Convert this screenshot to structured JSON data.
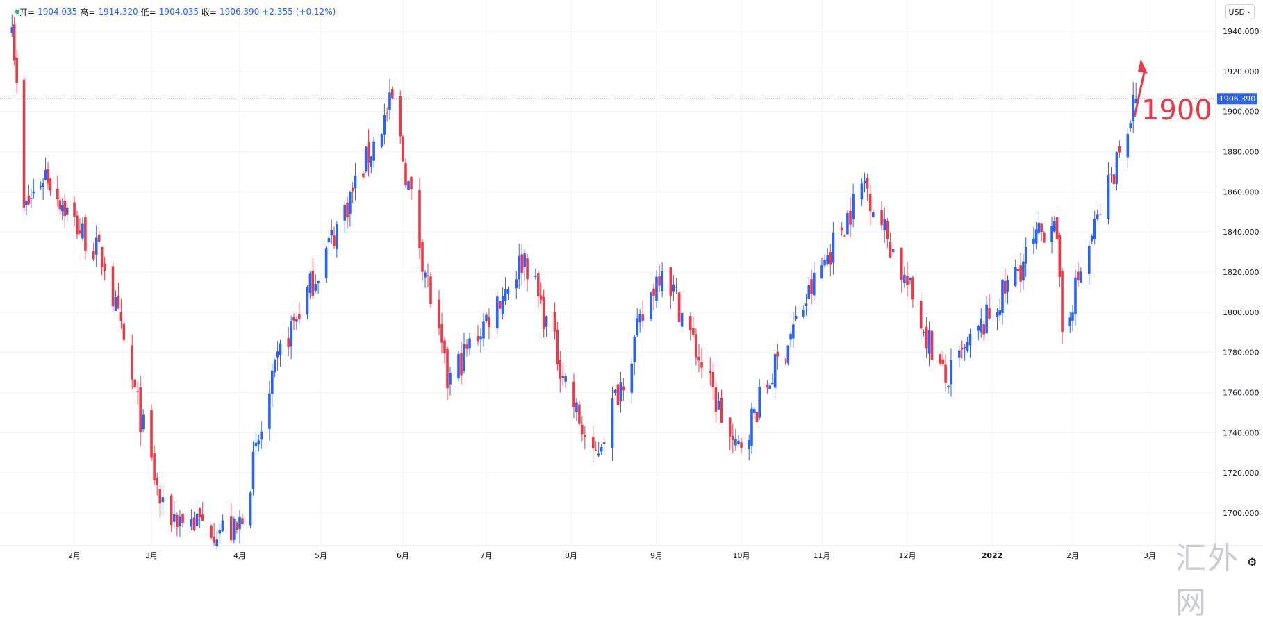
{
  "legend": {
    "open_label": "开=",
    "open": "1904.035",
    "high_label": "高=",
    "high": "1914.320",
    "low_label": "低=",
    "low": "1904.035",
    "close_label": "收=",
    "close": "1906.390",
    "change": "+2.355",
    "change_pct": "(+0.12%)"
  },
  "currency_button": "USD",
  "last_price_label": "1906.390",
  "annotation": {
    "text": "1900",
    "color": "#f23645"
  },
  "watermark": "汇外网",
  "colors": {
    "up": "#2962ff",
    "down": "#f23645",
    "grid": "#f0f3fa",
    "axis_text": "#131722",
    "price_line": "#7a7f8c"
  },
  "chart_data": {
    "type": "candlestick",
    "title": "",
    "x_tick_labels": [
      "2月",
      "3月",
      "4月",
      "5月",
      "6月",
      "7月",
      "8月",
      "9月",
      "10月",
      "11月",
      "12月",
      "2022",
      "2月",
      "3月"
    ],
    "y_tick_labels": [
      "1700.000",
      "1720.000",
      "1740.000",
      "1760.000",
      "1780.000",
      "1800.000",
      "1820.000",
      "1840.000",
      "1860.000",
      "1880.000",
      "1900.000",
      "1920.000",
      "1940.000"
    ],
    "ylim": [
      1678,
      1950
    ],
    "grid": true,
    "last_price": 1906.39,
    "key_points": [
      {
        "date": "2021-01-06",
        "close": 1950
      },
      {
        "date": "2021-01-11",
        "close": 1850
      },
      {
        "date": "2021-01-20",
        "close": 1870
      },
      {
        "date": "2021-01-29",
        "close": 1850
      },
      {
        "date": "2021-02-12",
        "close": 1825
      },
      {
        "date": "2021-03-05",
        "close": 1700
      },
      {
        "date": "2021-03-31",
        "close": 1690
      },
      {
        "date": "2021-04-16",
        "close": 1780
      },
      {
        "date": "2021-05-28",
        "close": 1905
      },
      {
        "date": "2021-06-17",
        "close": 1765
      },
      {
        "date": "2021-07-15",
        "close": 1828
      },
      {
        "date": "2021-08-09",
        "close": 1725
      },
      {
        "date": "2021-09-03",
        "close": 1825
      },
      {
        "date": "2021-09-29",
        "close": 1730
      },
      {
        "date": "2021-11-16",
        "close": 1865
      },
      {
        "date": "2021-12-15",
        "close": 1765
      },
      {
        "date": "2022-01-25",
        "close": 1850
      },
      {
        "date": "2022-01-28",
        "close": 1790
      },
      {
        "date": "2022-02-24",
        "close": 1906.39
      }
    ]
  }
}
